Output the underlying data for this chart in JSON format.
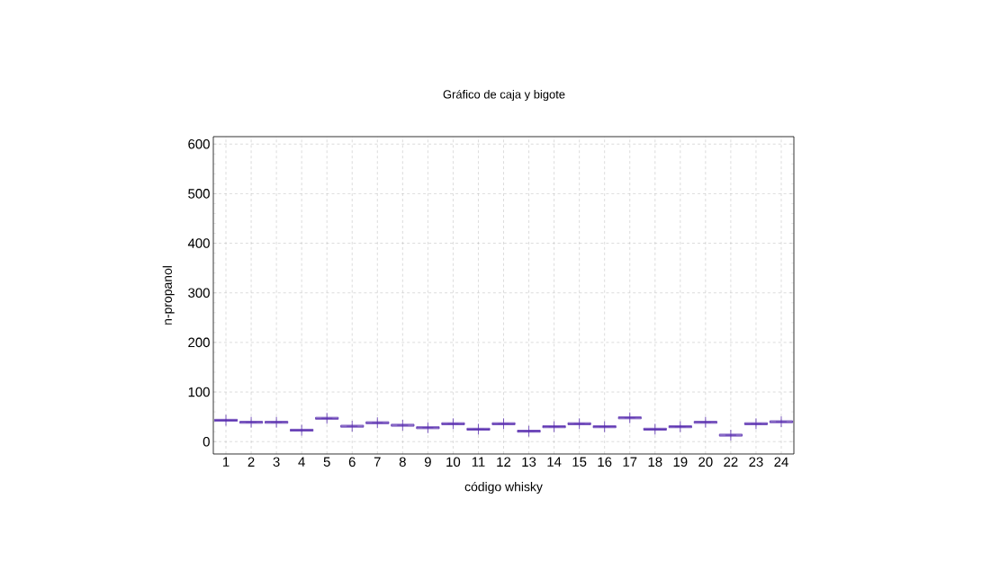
{
  "chart_data": {
    "type": "box",
    "title": "Gráfico de caja y bigote",
    "xlabel": "código whisky",
    "ylabel": "n-propanol",
    "categories": [
      "1",
      "2",
      "3",
      "4",
      "5",
      "6",
      "7",
      "8",
      "9",
      "10",
      "11",
      "12",
      "13",
      "14",
      "15",
      "16",
      "17",
      "18",
      "19",
      "20",
      "22",
      "23",
      "24"
    ],
    "color": "#5a30b0",
    "boxes": [
      {
        "low": 41,
        "q1": 41,
        "median": 43,
        "q3": 45,
        "high": 45,
        "mean": 43
      },
      {
        "low": 37,
        "q1": 37,
        "median": 39,
        "q3": 41,
        "high": 41,
        "mean": 39
      },
      {
        "low": 37,
        "q1": 37,
        "median": 39,
        "q3": 41,
        "high": 41,
        "mean": 39
      },
      {
        "low": 21,
        "q1": 21,
        "median": 23,
        "q3": 25,
        "high": 25,
        "mean": 23
      },
      {
        "low": 45,
        "q1": 45,
        "median": 47,
        "q3": 49,
        "high": 49,
        "mean": 47
      },
      {
        "low": 29,
        "q1": 29,
        "median": 31,
        "q3": 33,
        "high": 33,
        "mean": 31
      },
      {
        "low": 36,
        "q1": 36,
        "median": 38,
        "q3": 40,
        "high": 40,
        "mean": 38
      },
      {
        "low": 31,
        "q1": 31,
        "median": 33,
        "q3": 35,
        "high": 35,
        "mean": 33
      },
      {
        "low": 26,
        "q1": 26,
        "median": 28,
        "q3": 30,
        "high": 30,
        "mean": 28
      },
      {
        "low": 34,
        "q1": 34,
        "median": 36,
        "q3": 38,
        "high": 38,
        "mean": 36
      },
      {
        "low": 23,
        "q1": 23,
        "median": 25,
        "q3": 27,
        "high": 27,
        "mean": 25
      },
      {
        "low": 34,
        "q1": 34,
        "median": 36,
        "q3": 38,
        "high": 38,
        "mean": 36
      },
      {
        "low": 19,
        "q1": 19,
        "median": 21,
        "q3": 23,
        "high": 23,
        "mean": 21
      },
      {
        "low": 28,
        "q1": 28,
        "median": 30,
        "q3": 32,
        "high": 32,
        "mean": 30
      },
      {
        "low": 34,
        "q1": 34,
        "median": 36,
        "q3": 38,
        "high": 38,
        "mean": 36
      },
      {
        "low": 28,
        "q1": 28,
        "median": 30,
        "q3": 32,
        "high": 32,
        "mean": 30
      },
      {
        "low": 46,
        "q1": 46,
        "median": 48,
        "q3": 50,
        "high": 50,
        "mean": 48
      },
      {
        "low": 23,
        "q1": 23,
        "median": 25,
        "q3": 27,
        "high": 27,
        "mean": 25
      },
      {
        "low": 28,
        "q1": 28,
        "median": 30,
        "q3": 32,
        "high": 32,
        "mean": 30
      },
      {
        "low": 37,
        "q1": 37,
        "median": 39,
        "q3": 41,
        "high": 41,
        "mean": 39
      },
      {
        "low": 11,
        "q1": 11,
        "median": 13,
        "q3": 15,
        "high": 15,
        "mean": 13
      },
      {
        "low": 34,
        "q1": 34,
        "median": 36,
        "q3": 38,
        "high": 38,
        "mean": 36
      },
      {
        "low": 38,
        "q1": 38,
        "median": 40,
        "q3": 42,
        "high": 42,
        "mean": 40
      }
    ],
    "ylim": [
      -25,
      615
    ],
    "yticks": [
      0,
      100,
      200,
      300,
      400,
      500,
      600
    ],
    "grid": true,
    "marker": "cross"
  }
}
